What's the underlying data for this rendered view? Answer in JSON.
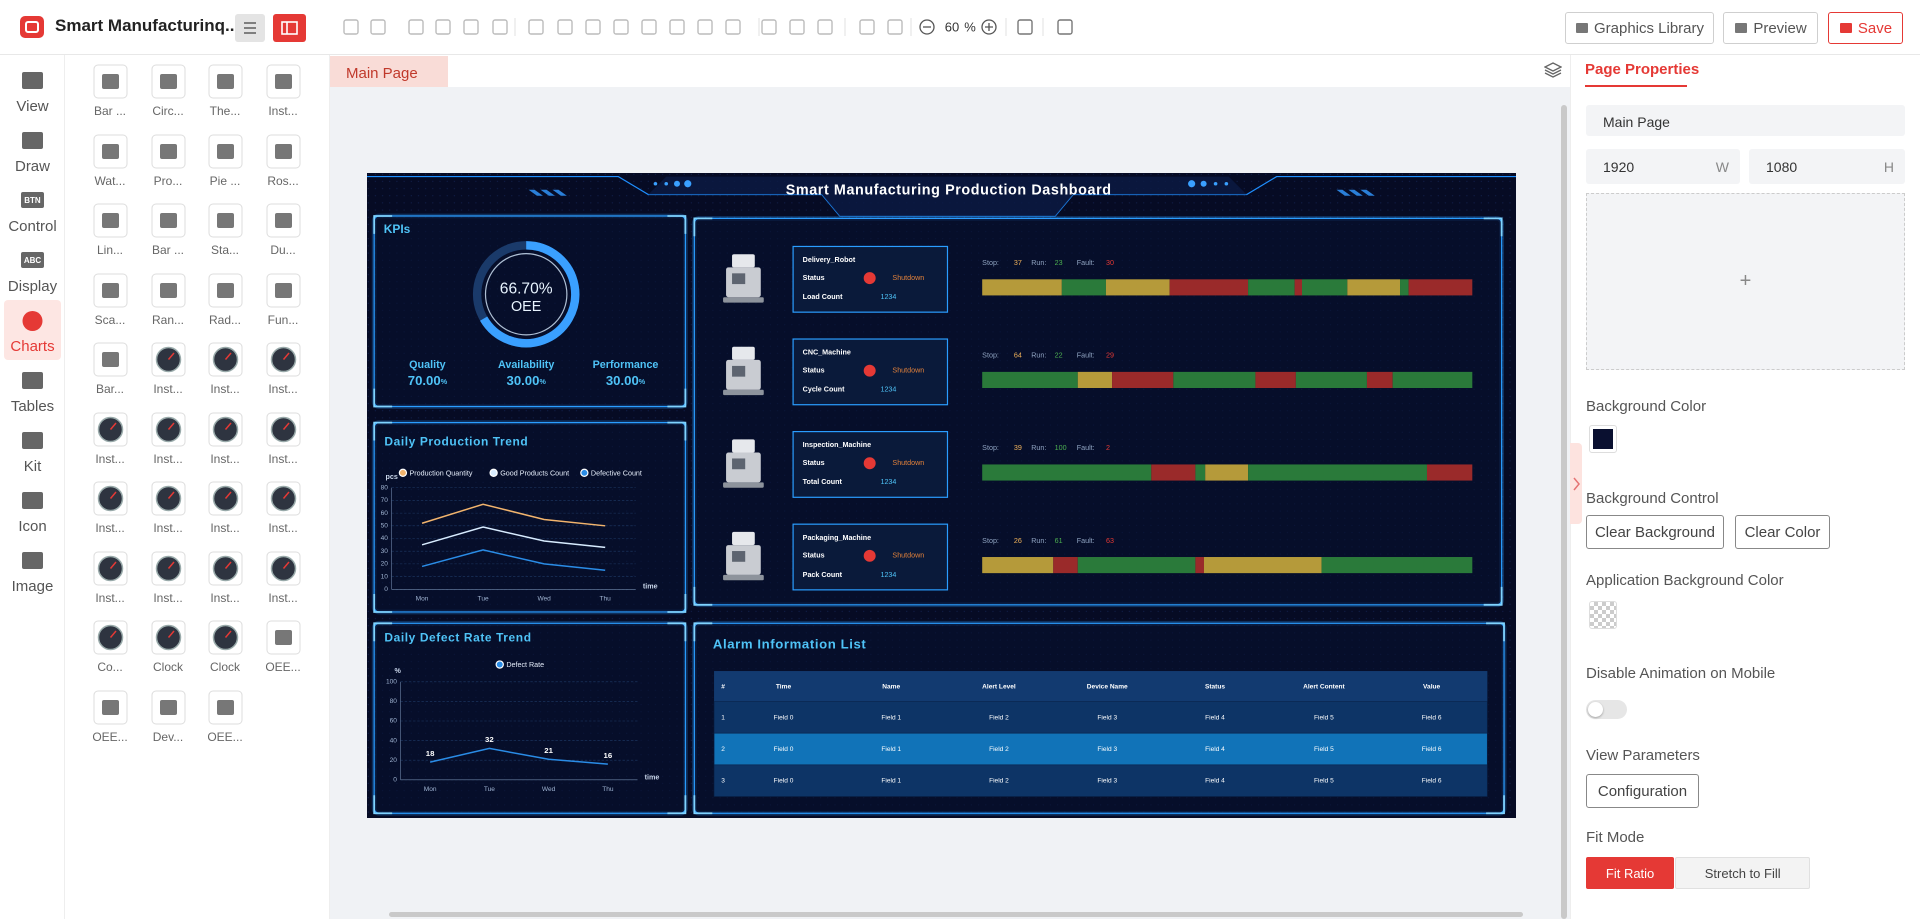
{
  "header": {
    "title": "Smart Manufacturinq...",
    "zoom": 60,
    "zoom_unit": "%",
    "buttons": [
      "Graphics Library",
      "Preview",
      "Save"
    ]
  },
  "nav": [
    {
      "label": "View"
    },
    {
      "label": "Draw"
    },
    {
      "label": "Control",
      "icon_text": "BTN"
    },
    {
      "label": "Display",
      "icon_text": "ABC"
    },
    {
      "label": "Charts",
      "active": true
    },
    {
      "label": "Tables"
    },
    {
      "label": "Kit"
    },
    {
      "label": "Icon"
    },
    {
      "label": "Image"
    }
  ],
  "palette": [
    "Bar ...",
    "Circ...",
    "The...",
    "Inst...",
    "Wat...",
    "Pro...",
    "Pie ...",
    "Ros...",
    "Lin...",
    "Bar ...",
    "Sta...",
    "Du...",
    "Sca...",
    "Ran...",
    "Rad...",
    "Fun...",
    "Bar...",
    "Inst...",
    "Inst...",
    "Inst...",
    "Inst...",
    "Inst...",
    "Inst...",
    "Inst...",
    "Inst...",
    "Inst...",
    "Inst...",
    "Inst...",
    "Inst...",
    "Inst...",
    "Inst...",
    "Inst...",
    "Co...",
    "Clock",
    "Clock",
    "OEE...",
    "OEE...",
    "Dev...",
    "OEE..."
  ],
  "tabs": [
    "Main Page"
  ],
  "dashboard": {
    "title": "Smart Manufacturing Production Dashboard",
    "background": "#060b24",
    "kpi": {
      "title": "KPIs",
      "gauge": {
        "value": 66.7,
        "value_label": "66.70%",
        "label": "OEE",
        "color": "#3aa0ff"
      },
      "metrics": [
        {
          "name": "Quality",
          "value": 70,
          "value_label": "70.00",
          "unit": "%"
        },
        {
          "name": "Availability",
          "value": 30,
          "value_label": "30.00",
          "unit": "%"
        },
        {
          "name": "Performance",
          "value": 30,
          "value_label": "30.00",
          "unit": "%"
        }
      ]
    },
    "production": {
      "type": "line",
      "title": "Daily Production Trend",
      "y_label": "pcs",
      "x_label": "time",
      "categories": [
        "Mon",
        "Tue",
        "Wed",
        "Thu"
      ],
      "ylim": [
        0,
        80
      ],
      "yticks": [
        0,
        10,
        20,
        30,
        40,
        50,
        60,
        70,
        80
      ],
      "series": [
        {
          "name": "Production Quantity",
          "color": "#f2b46d",
          "values": [
            52,
            67,
            55,
            50
          ]
        },
        {
          "name": "Good Products Count",
          "color": "#d8ecff",
          "values": [
            35,
            49,
            38,
            33
          ]
        },
        {
          "name": "Defective Count",
          "color": "#2a8ce6",
          "values": [
            18,
            31,
            20,
            15
          ]
        }
      ]
    },
    "defect": {
      "type": "line",
      "title": "Daily Defect Rate Trend",
      "y_label": "%",
      "x_label": "time",
      "categories": [
        "Mon",
        "Tue",
        "Wed",
        "Thu"
      ],
      "ylim": [
        0,
        100
      ],
      "yticks": [
        0,
        20,
        40,
        60,
        80,
        100
      ],
      "data_labels": true,
      "series": [
        {
          "name": "Defect Rate",
          "color": "#2a8ce6",
          "values": [
            18,
            32,
            21,
            16
          ]
        }
      ]
    },
    "devices": {
      "status_label": "Status",
      "stop_label": "Stop:",
      "run_label": "Run:",
      "fault_label": "Fault:",
      "items": [
        {
          "name": "Delivery_Robot",
          "status": "Shutdown",
          "count_label": "Load Count",
          "count": 1234,
          "stop": 37,
          "run": 23,
          "fault": 30,
          "segments": [
            {
              "color": "#b59a3a",
              "length": 65
            },
            {
              "color": "#2a7a3a",
              "length": 36
            },
            {
              "color": "#b59a3a",
              "length": 52
            },
            {
              "color": "#9a2a2a",
              "length": 64
            },
            {
              "color": "#2a7a3a",
              "length": 38
            },
            {
              "color": "#9a2a2a",
              "length": 6
            },
            {
              "color": "#2a7a3a",
              "length": 37
            },
            {
              "color": "#b59a3a",
              "length": 43
            },
            {
              "color": "#2a7a3a",
              "length": 7
            },
            {
              "color": "#9a2a2a",
              "length": 52
            }
          ]
        },
        {
          "name": "CNC_Machine",
          "status": "Shutdown",
          "count_label": "Cycle Count",
          "count": 1234,
          "stop": 64,
          "run": 22,
          "fault": 29,
          "segments": [
            {
              "color": "#2a7a3a",
              "length": 78
            },
            {
              "color": "#b59a3a",
              "length": 28
            },
            {
              "color": "#9a2a2a",
              "length": 50
            },
            {
              "color": "#2a7a3a",
              "length": 67
            },
            {
              "color": "#9a2a2a",
              "length": 33
            },
            {
              "color": "#2a7a3a",
              "length": 58
            },
            {
              "color": "#9a2a2a",
              "length": 21
            },
            {
              "color": "#2a7a3a",
              "length": 65
            }
          ]
        },
        {
          "name": "Inspection_Machine",
          "status": "Shutdown",
          "count_label": "Total Count",
          "count": 1234,
          "stop": 39,
          "run": 100,
          "fault": 2,
          "segments": [
            {
              "color": "#2a7a3a",
              "length": 138
            },
            {
              "color": "#9a2a2a",
              "length": 36
            },
            {
              "color": "#2a7a3a",
              "length": 8
            },
            {
              "color": "#b59a3a",
              "length": 35
            },
            {
              "color": "#2a7a3a",
              "length": 146
            },
            {
              "color": "#9a2a2a",
              "length": 37
            }
          ]
        },
        {
          "name": "Packaging_Machine",
          "status": "Shutdown",
          "count_label": "Pack Count",
          "count": 1234,
          "stop": 26,
          "run": 61,
          "fault": 63,
          "segments": [
            {
              "color": "#b59a3a",
              "length": 58
            },
            {
              "color": "#9a2a2a",
              "length": 20
            },
            {
              "color": "#2a7a3a",
              "length": 96
            },
            {
              "color": "#9a2a2a",
              "length": 7
            },
            {
              "color": "#b59a3a",
              "length": 96
            },
            {
              "color": "#2a7a3a",
              "length": 123
            }
          ]
        }
      ]
    },
    "alarms": {
      "title": "Alarm Information List",
      "columns": [
        "#",
        "Time",
        "Name",
        "Alert Level",
        "Device Name",
        "Status",
        "Alert Content",
        "Value"
      ],
      "rows": [
        [
          "1",
          "Field 0",
          "Field 1",
          "Field 2",
          "Field 3",
          "Field 4",
          "Field 5",
          "Field 6"
        ],
        [
          "2",
          "Field 0",
          "Field 1",
          "Field 2",
          "Field 3",
          "Field 4",
          "Field 5",
          "Field 6"
        ],
        [
          "3",
          "Field 0",
          "Field 1",
          "Field 2",
          "Field 3",
          "Field 4",
          "Field 5",
          "Field 6"
        ]
      ]
    }
  },
  "properties": {
    "tab": "Page Properties",
    "page_name": "Main Page",
    "width": 1920,
    "width_unit": "W",
    "height": 1080,
    "height_unit": "H",
    "upload_icon": "+",
    "background_color_label": "Background Color",
    "background_color": "#0a1030",
    "background_control_label": "Background Control",
    "clear_background": "Clear Background",
    "clear_color": "Clear Color",
    "app_background_label": "Application Background Color",
    "disable_animation_label": "Disable Animation on Mobile",
    "disable_animation": false,
    "view_parameters_label": "View Parameters",
    "configuration": "Configuration",
    "fit_mode_label": "Fit Mode",
    "fit_modes": [
      {
        "label": "Fit Ratio",
        "active": true
      },
      {
        "label": "Stretch to Fill"
      }
    ]
  }
}
